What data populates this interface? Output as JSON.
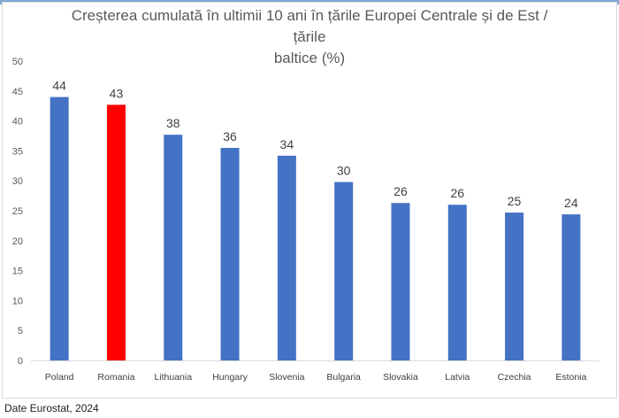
{
  "chart_data": {
    "type": "bar",
    "title": "Creșterea cumulată în ultimii 10 ani în țările Europei Centrale și de Est / țările baltice (%)",
    "title_lines": [
      "Creșterea cumulată în ultimii 10 ani în țările Europei Centrale și de Est / țările",
      "baltice (%)"
    ],
    "categories": [
      "Poland",
      "Romania",
      "Lithuania",
      "Hungary",
      "Slovenia",
      "Bulgaria",
      "Slovakia",
      "Latvia",
      "Czechia",
      "Estonia"
    ],
    "values": [
      44,
      42.7,
      37.7,
      35.5,
      34.2,
      29.8,
      26.3,
      26.0,
      24.7,
      24.4
    ],
    "data_labels": [
      "44",
      "43",
      "38",
      "36",
      "34",
      "30",
      "26",
      "26",
      "25",
      "24"
    ],
    "colors": {
      "default": "#4472c4",
      "highlight": "#ff0000",
      "highlight_category": "Romania"
    },
    "xlabel": "",
    "ylabel": "",
    "ylim": [
      0,
      50
    ],
    "yticks": [
      "0",
      "5",
      "10",
      "15",
      "20",
      "25",
      "30",
      "35",
      "40",
      "45",
      "50"
    ],
    "grid": false,
    "legend": "none"
  },
  "source": "Date Eurostat, 2024"
}
